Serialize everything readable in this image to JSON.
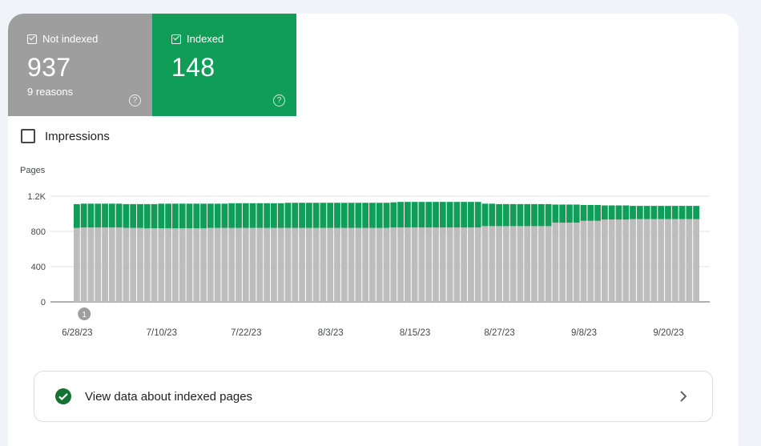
{
  "summary": {
    "not_indexed": {
      "label": "Not indexed",
      "value": "937",
      "sub": "9 reasons",
      "color": "#9e9e9e"
    },
    "indexed": {
      "label": "Indexed",
      "value": "148",
      "color": "#0f9d58"
    }
  },
  "impressions": {
    "label": "Impressions",
    "checked": false
  },
  "chart_data": {
    "type": "bar",
    "stacked": true,
    "ylabel": "Pages",
    "ylim": [
      0,
      1200
    ],
    "yticks": [
      {
        "value": 0,
        "label": "0"
      },
      {
        "value": 400,
        "label": "400"
      },
      {
        "value": 800,
        "label": "800"
      },
      {
        "value": 1200,
        "label": "1.2K"
      }
    ],
    "xtick_labels": [
      "6/28/23",
      "7/10/23",
      "7/22/23",
      "8/3/23",
      "8/15/23",
      "8/27/23",
      "9/8/23",
      "9/20/23"
    ],
    "xtick_index": [
      0,
      12,
      24,
      36,
      48,
      60,
      72,
      84
    ],
    "annotation": {
      "label": "1",
      "index": 1
    },
    "grid": true,
    "series": [
      {
        "name": "Not indexed",
        "color": "#bdbdbd",
        "values": [
          840,
          845,
          845,
          845,
          845,
          845,
          845,
          840,
          840,
          840,
          835,
          835,
          835,
          835,
          835,
          835,
          835,
          835,
          835,
          840,
          840,
          840,
          840,
          840,
          840,
          840,
          840,
          840,
          840,
          840,
          840,
          840,
          840,
          840,
          840,
          840,
          840,
          840,
          840,
          840,
          840,
          840,
          840,
          840,
          840,
          845,
          845,
          845,
          845,
          845,
          845,
          845,
          845,
          845,
          845,
          845,
          845,
          845,
          860,
          860,
          860,
          860,
          860,
          860,
          860,
          860,
          860,
          860,
          900,
          900,
          900,
          900,
          920,
          920,
          920,
          935,
          935,
          935,
          935,
          940,
          940,
          940,
          940,
          940,
          940,
          940,
          940,
          940,
          940
        ]
      },
      {
        "name": "Indexed",
        "color": "#0f9d58",
        "values": [
          270,
          270,
          270,
          270,
          270,
          270,
          270,
          270,
          270,
          270,
          275,
          275,
          280,
          280,
          280,
          280,
          280,
          280,
          280,
          275,
          275,
          275,
          280,
          280,
          280,
          280,
          280,
          280,
          280,
          280,
          285,
          285,
          285,
          285,
          285,
          285,
          285,
          285,
          285,
          285,
          285,
          285,
          285,
          285,
          285,
          285,
          290,
          290,
          290,
          290,
          290,
          290,
          290,
          290,
          290,
          290,
          290,
          290,
          255,
          255,
          250,
          250,
          250,
          250,
          250,
          250,
          250,
          250,
          205,
          205,
          205,
          205,
          180,
          180,
          180,
          160,
          160,
          160,
          160,
          150,
          150,
          150,
          150,
          150,
          150,
          150,
          150,
          150,
          150
        ]
      }
    ]
  },
  "footer_link": {
    "label": "View data about indexed pages",
    "icon": "check-circle-icon",
    "color": "#137333"
  }
}
